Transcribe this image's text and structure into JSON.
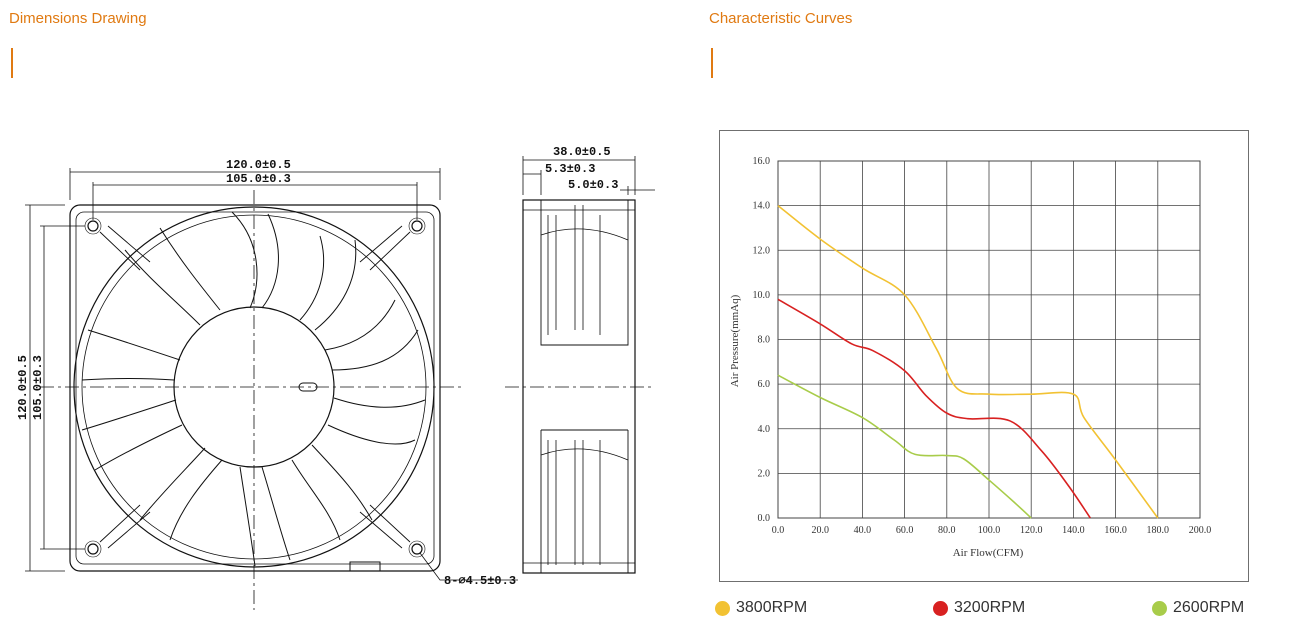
{
  "sections": {
    "dimensions_title": "Dimensions Drawing",
    "curves_title": "Characteristic Curves"
  },
  "drawing": {
    "front_width": "120.0±0.5",
    "front_hole_spacing": "105.0±0.3",
    "front_height": "120.0±0.5",
    "front_hole_spacing_v": "105.0±0.3",
    "holes": "8-⌀4.5±0.3",
    "side_depth": "38.0±0.5",
    "side_step1": "5.3±0.3",
    "side_step2": "5.0±0.3"
  },
  "colors": {
    "accent": "#e07a12",
    "rpm3800": "#f2c233",
    "rpm3200": "#d82121",
    "rpm2600": "#a8cc4a"
  },
  "chart_data": {
    "type": "line",
    "title": "Characteristic Curves",
    "xlabel": "Air Flow(CFM)",
    "ylabel": "Air Pressure(mmAq)",
    "xlim": [
      0,
      200
    ],
    "ylim": [
      0,
      16
    ],
    "xticks": [
      "0.0",
      "20.0",
      "40.0",
      "60.0",
      "80.0",
      "100.0",
      "120.0",
      "140.0",
      "160.0",
      "180.0",
      "200.0"
    ],
    "yticks": [
      "0.0",
      "2.0",
      "4.0",
      "6.0",
      "8.0",
      "10.0",
      "12.0",
      "14.0",
      "16.0"
    ],
    "grid": true,
    "series": [
      {
        "name": "3800RPM",
        "color": "#f2c233",
        "points": [
          [
            0,
            14.0
          ],
          [
            20,
            12.5
          ],
          [
            40,
            11.2
          ],
          [
            60,
            10.0
          ],
          [
            75,
            7.6
          ],
          [
            85,
            5.8
          ],
          [
            100,
            5.55
          ],
          [
            120,
            5.55
          ],
          [
            140,
            5.55
          ],
          [
            145,
            4.5
          ],
          [
            160,
            2.6
          ],
          [
            180,
            0.0
          ]
        ]
      },
      {
        "name": "3200RPM",
        "color": "#d82121",
        "points": [
          [
            0,
            9.8
          ],
          [
            20,
            8.7
          ],
          [
            35,
            7.8
          ],
          [
            45,
            7.5
          ],
          [
            60,
            6.6
          ],
          [
            70,
            5.5
          ],
          [
            80,
            4.7
          ],
          [
            90,
            4.45
          ],
          [
            110,
            4.35
          ],
          [
            125,
            3.0
          ],
          [
            138,
            1.4
          ],
          [
            148,
            0.0
          ]
        ]
      },
      {
        "name": "2600RPM",
        "color": "#a8cc4a",
        "points": [
          [
            0,
            6.4
          ],
          [
            20,
            5.4
          ],
          [
            40,
            4.5
          ],
          [
            55,
            3.5
          ],
          [
            65,
            2.85
          ],
          [
            80,
            2.8
          ],
          [
            88,
            2.65
          ],
          [
            100,
            1.7
          ],
          [
            112,
            0.7
          ],
          [
            120,
            0.0
          ]
        ]
      }
    ]
  },
  "legend": [
    {
      "label": "3800RPM",
      "color": "#f2c233"
    },
    {
      "label": "3200RPM",
      "color": "#d82121"
    },
    {
      "label": "2600RPM",
      "color": "#a8cc4a"
    }
  ]
}
